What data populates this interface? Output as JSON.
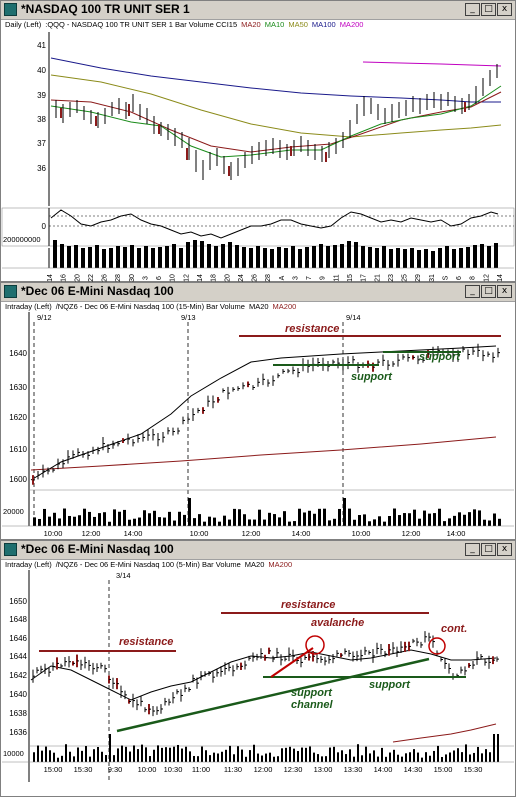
{
  "windows": [
    {
      "title": "*NASDAQ 100 TR UNIT SER 1",
      "info": [
        {
          "text": "Daily  (Left)",
          "color": "#000000"
        },
        {
          "text": ":QQQ - NASDAQ 100 TR UNIT SER 1  Bar  Volume  CCI15",
          "color": "#000000"
        },
        {
          "text": "MA20",
          "color": "#8b1a1a"
        },
        {
          "text": "MA10",
          "color": "#1a8b1a"
        },
        {
          "text": "MA50",
          "color": "#8b8b1a"
        },
        {
          "text": "MA100",
          "color": "#1a1a8b"
        },
        {
          "text": "MA200",
          "color": "#c000c0"
        }
      ],
      "price_ticks": [
        "41",
        "40",
        "39",
        "38",
        "37",
        "36"
      ],
      "cci_ticks": [
        "0"
      ],
      "volume_ticks": [
        "200000000"
      ],
      "x_ticks": [
        "14",
        "16",
        "20",
        "22",
        "26",
        "28",
        "30",
        "3",
        "6",
        "10",
        "12",
        "14",
        "18",
        "20",
        "24",
        "26",
        "28",
        "A",
        "3",
        "7",
        "9",
        "11",
        "15",
        "17",
        "21",
        "23",
        "25",
        "29",
        "31",
        "S",
        "6",
        "8",
        "12",
        "14"
      ]
    },
    {
      "title": "*Dec 06  E-Mini Nasdaq 100",
      "info": [
        {
          "text": "Intraday  (Left)",
          "color": "#000000"
        },
        {
          "text": "/NQZ6 - Dec 06  E-Mini Nasdaq 100 (15-Min)  Bar  Volume",
          "color": "#000000"
        },
        {
          "text": "MA20",
          "color": "#000000"
        },
        {
          "text": "MA200",
          "color": "#8b1a1a"
        }
      ],
      "price_ticks": [
        "1640",
        "1630",
        "1620",
        "1610",
        "1600"
      ],
      "volume_ticks": [
        "20000"
      ],
      "date_markers": [
        "9/12",
        "9/13",
        "9/14"
      ],
      "x_ticks": [
        "10:00",
        "12:00",
        "14:00",
        "10:00",
        "12:00",
        "14:00",
        "10:00",
        "12:00",
        "14:00"
      ],
      "annotations": {
        "resistance": "resistance",
        "support_left": "support",
        "support_right": "support"
      }
    },
    {
      "title": "*Dec 06  E-Mini Nasdaq 100",
      "info": [
        {
          "text": "Intraday  (Left)",
          "color": "#000000"
        },
        {
          "text": "/NQZ6 - Dec 06  E-Mini Nasdaq 100 (5-Min)  Bar  Volume",
          "color": "#000000"
        },
        {
          "text": "MA20",
          "color": "#000000"
        },
        {
          "text": "MA200",
          "color": "#8b1a1a"
        }
      ],
      "price_ticks": [
        "1650",
        "1648",
        "1646",
        "1644",
        "1642",
        "1640",
        "1638",
        "1636"
      ],
      "volume_ticks": [
        "10000"
      ],
      "date_markers": [
        "3/14"
      ],
      "x_ticks": [
        "15:00",
        "15:30",
        "9:30",
        "10:00",
        "10:30",
        "11:00",
        "11:30",
        "12:00",
        "12:30",
        "13:00",
        "13:30",
        "14:00",
        "14:30",
        "15:00",
        "15:30"
      ],
      "annotations": {
        "resistance_left": "resistance",
        "resistance_right": "resistance",
        "avalanche": "avalanche",
        "cont": "cont.",
        "support": "support",
        "support_channel": "support\nchannel"
      }
    }
  ],
  "window_buttons": {
    "minimize": "_",
    "maximize": "□",
    "close": "x"
  }
}
